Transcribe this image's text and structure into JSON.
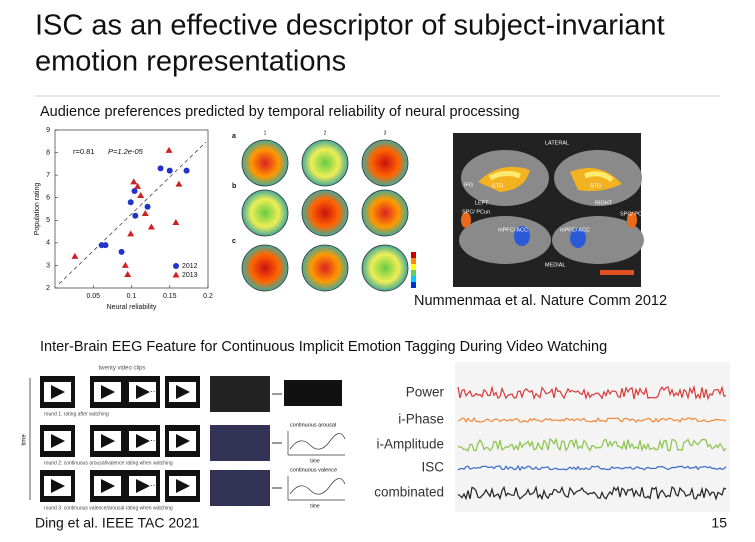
{
  "slide": {
    "title_lines": [
      "ISC as an effective descriptor of subject-invariant",
      "emotion representations"
    ],
    "section1": "Audience preferences predicted by temporal reliability of neural processing",
    "citation1": "Nummenmaa et al. Nature Comm 2012",
    "topo_rows": [
      "a",
      "b",
      "c"
    ],
    "topo_cols": [
      "1",
      "2",
      "3"
    ],
    "brain_labels": [
      "LATERAL",
      "LEFT",
      "RIGHT",
      "MEDIAL",
      "IFG",
      "STG",
      "STG",
      "SPC/ PCun",
      "mPFC/ ACC",
      "mPFC/ ACC",
      "SPC/ PCun"
    ],
    "section2": "Inter-Brain EEG Feature for Continuous Implicit Emotion Tagging During Video Watching",
    "diagram": {
      "header": "twenty video clips",
      "time_axis": "time",
      "rounds": [
        "round 1: rating after watching",
        "round 2: continuous arousal/valence rating when watching",
        "round 3: continuous valence/arousal rating when watching"
      ],
      "curves": [
        "continuous arousal",
        "continuous valence"
      ],
      "curve_axis": [
        "time",
        "time"
      ]
    },
    "feature_labels": [
      "Power",
      "i-Phase",
      "i-Amplitude",
      "ISC",
      "combinated"
    ],
    "citation2": "Ding et al. IEEE TAC 2021",
    "page_number": "15"
  },
  "chart_data": {
    "type": "scatter",
    "xlabel": "Neural reliability",
    "ylabel": "Population rating",
    "annotations": [
      "r=0.81",
      "P=1.2e-05"
    ],
    "xlim": [
      0,
      0.2
    ],
    "xticks": [
      0.05,
      0.1,
      0.15,
      0.2
    ],
    "ylim": [
      2,
      9
    ],
    "yticks": [
      2,
      3,
      4,
      5,
      6,
      7,
      8,
      9
    ],
    "legend": "lower right",
    "series": [
      {
        "name": "2012",
        "color": "#2233cc",
        "marker": "circle",
        "x": [
          0.061,
          0.066,
          0.087,
          0.099,
          0.105,
          0.104,
          0.138,
          0.15,
          0.172,
          0.121
        ],
        "values": [
          3.9,
          3.9,
          3.6,
          5.8,
          5.2,
          6.3,
          7.3,
          7.2,
          7.2,
          5.6
        ]
      },
      {
        "name": "2013",
        "color": "#cc2222",
        "marker": "triangle",
        "x": [
          0.026,
          0.103,
          0.108,
          0.118,
          0.092,
          0.095,
          0.126,
          0.158,
          0.162,
          0.149,
          0.112,
          0.099
        ],
        "values": [
          3.4,
          6.7,
          6.5,
          5.3,
          3.0,
          2.6,
          4.7,
          4.9,
          6.6,
          8.1,
          6.1,
          4.4
        ]
      }
    ]
  }
}
